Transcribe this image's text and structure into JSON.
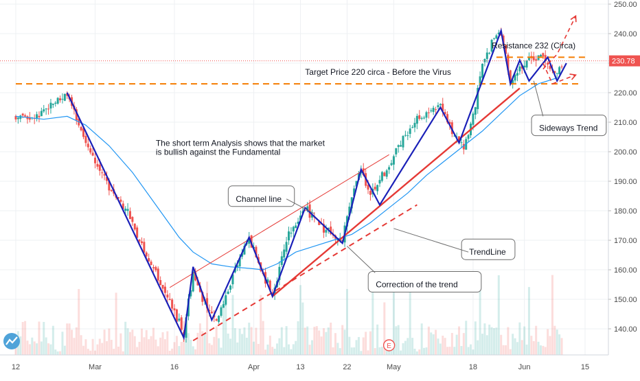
{
  "chart_data": {
    "type": "candlestick",
    "y_axis": {
      "min": 131,
      "max": 252,
      "position": "right",
      "ticks": [
        140,
        150,
        160,
        170,
        180,
        190,
        200,
        210,
        220,
        230,
        240,
        250
      ],
      "tick_labels": [
        "140.00",
        "150.00",
        "160.00",
        "170.00",
        "180.00",
        "190.00",
        "200.00",
        "210.00",
        "220.00",
        "230.00",
        "240.00",
        "250.00"
      ]
    },
    "x_axis": {
      "min": 0,
      "max": 122,
      "ticks": [
        {
          "x": 0,
          "label": "12"
        },
        {
          "x": 17,
          "label": "Mar"
        },
        {
          "x": 34,
          "label": "16"
        },
        {
          "x": 51,
          "label": "Apr"
        },
        {
          "x": 61,
          "label": "13"
        },
        {
          "x": 71,
          "label": "22"
        },
        {
          "x": 81,
          "label": "May"
        },
        {
          "x": 98,
          "label": "18"
        },
        {
          "x": 109,
          "label": "Jun"
        },
        {
          "x": 122,
          "label": "15"
        }
      ]
    },
    "grid": true,
    "current_price": {
      "value": 230.78,
      "label": "230.78",
      "color": "#ef5350"
    },
    "price_path": [
      [
        0,
        212
      ],
      [
        4,
        211
      ],
      [
        8,
        217
      ],
      [
        11,
        219
      ],
      [
        13,
        210
      ],
      [
        16,
        200
      ],
      [
        20,
        188
      ],
      [
        24,
        180
      ],
      [
        27,
        168
      ],
      [
        30,
        158
      ],
      [
        33,
        150
      ],
      [
        36,
        138
      ],
      [
        38,
        160
      ],
      [
        40,
        150
      ],
      [
        43,
        142
      ],
      [
        47,
        160
      ],
      [
        50,
        171
      ],
      [
        52,
        162
      ],
      [
        55,
        152
      ],
      [
        58,
        170
      ],
      [
        62,
        181
      ],
      [
        65,
        176
      ],
      [
        68,
        172
      ],
      [
        70,
        170
      ],
      [
        72,
        185
      ],
      [
        74,
        194
      ],
      [
        76,
        186
      ],
      [
        79,
        193
      ],
      [
        83,
        205
      ],
      [
        87,
        212
      ],
      [
        91,
        216
      ],
      [
        94,
        205
      ],
      [
        96,
        202
      ],
      [
        98,
        212
      ],
      [
        100,
        230
      ],
      [
        102,
        237
      ],
      [
        104,
        240
      ],
      [
        106,
        223
      ],
      [
        108,
        228
      ],
      [
        110,
        232
      ],
      [
        111,
        231
      ],
      [
        113,
        232
      ],
      [
        115,
        226
      ],
      [
        117,
        229
      ]
    ],
    "moving_average": [
      [
        0,
        212
      ],
      [
        6,
        211
      ],
      [
        11,
        212
      ],
      [
        15,
        209
      ],
      [
        20,
        202
      ],
      [
        25,
        193
      ],
      [
        30,
        182
      ],
      [
        35,
        171
      ],
      [
        38,
        166
      ],
      [
        42,
        162
      ],
      [
        46,
        161
      ],
      [
        50,
        160.5
      ],
      [
        53,
        160
      ],
      [
        56,
        162
      ],
      [
        60,
        166
      ],
      [
        64,
        168
      ],
      [
        68,
        170
      ],
      [
        72,
        172
      ],
      [
        76,
        176
      ],
      [
        80,
        181
      ],
      [
        84,
        186
      ],
      [
        88,
        192
      ],
      [
        92,
        197
      ],
      [
        96,
        202
      ],
      [
        100,
        207
      ],
      [
        104,
        213
      ],
      [
        108,
        219
      ],
      [
        112,
        223
      ],
      [
        116,
        225
      ]
    ],
    "volume_range": [
      0,
      100
    ],
    "series": [
      {
        "name": "",
        "color": "#26a69a",
        "role": "up-candles"
      },
      {
        "name": "",
        "color": "#ef5350",
        "role": "down-candles"
      },
      {
        "name": "",
        "color": "#2196f3",
        "role": "moving-average"
      }
    ],
    "drawings": {
      "zigzag": {
        "color": "#1a20b8",
        "points": [
          [
            11,
            220
          ],
          [
            36,
            137
          ],
          [
            38,
            161
          ],
          [
            42,
            143
          ],
          [
            50,
            171
          ],
          [
            55,
            151
          ],
          [
            62,
            181
          ],
          [
            70,
            169
          ],
          [
            74,
            194
          ],
          [
            78,
            182
          ],
          [
            91,
            215
          ],
          [
            95,
            203
          ],
          [
            104,
            241
          ],
          [
            106,
            223
          ],
          [
            108,
            231
          ],
          [
            110,
            224
          ],
          [
            114,
            232
          ],
          [
            116,
            224
          ],
          [
            118,
            230
          ]
        ]
      },
      "channel_line": {
        "color": "#e53935",
        "from": [
          33,
          154
        ],
        "to": [
          80,
          199
        ]
      },
      "support_trend": {
        "color": "#e53935",
        "from": [
          55,
          151
        ],
        "to": [
          108,
          221.5
        ]
      },
      "dashed_trend": {
        "color": "#e53935",
        "from": [
          38,
          136
        ],
        "to": [
          86,
          182
        ]
      },
      "resistance_line": {
        "color": "#f57c00",
        "y": 232,
        "x_from": 103,
        "x_to": 122
      },
      "target_line": {
        "color": "#f57c00",
        "y": 223,
        "x_from": 0,
        "x_to": 121
      },
      "projection": {
        "color": "#e53935",
        "paths": [
          [
            [
              113,
              228
            ],
            [
              116,
              233
            ],
            [
              120,
              246
            ]
          ],
          [
            [
              113,
              230
            ],
            [
              115,
              223
            ],
            [
              120,
              226
            ]
          ]
        ]
      }
    },
    "annotations": [
      {
        "text": "Resistance 232 (Circa)",
        "x": 102,
        "y": 235,
        "style": "plain"
      },
      {
        "text": "Target Price 220 circa - Before the Virus",
        "x": 62,
        "y": 226,
        "style": "plain"
      },
      {
        "text": "The short term Analysis shows that the market",
        "x": 30,
        "y": 202,
        "style": "plain"
      },
      {
        "text": "is bullish against the Fundamental",
        "x": 30,
        "y": 199,
        "style": "plain"
      },
      {
        "text": "Channel line",
        "x": 47,
        "y": 184,
        "style": "box"
      },
      {
        "text": "TrendLine",
        "x": 97,
        "y": 166,
        "style": "box"
      },
      {
        "text": "Correction of the trend",
        "x": 77,
        "y": 155,
        "style": "box"
      },
      {
        "text": "Sideways Trend",
        "x": 112,
        "y": 208,
        "style": "box"
      }
    ]
  },
  "icons": {
    "logo": "tradingview-logo-icon",
    "event": "earnings-event-icon"
  },
  "event_marker": {
    "label": "E",
    "x": 80
  }
}
